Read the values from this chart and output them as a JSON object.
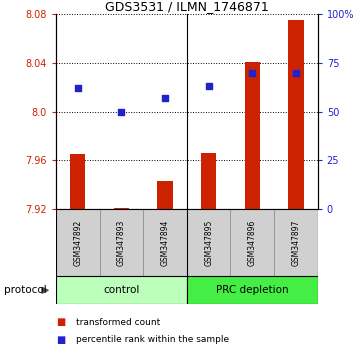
{
  "title": "GDS3531 / ILMN_1746871",
  "samples": [
    "GSM347892",
    "GSM347893",
    "GSM347894",
    "GSM347895",
    "GSM347896",
    "GSM347897"
  ],
  "transformed_count": [
    7.965,
    7.921,
    7.943,
    7.966,
    8.041,
    8.075
  ],
  "percentile_rank": [
    62,
    50,
    57,
    63,
    70,
    70
  ],
  "bar_baseline": 7.92,
  "ylim_left": [
    7.92,
    8.08
  ],
  "ylim_right": [
    0,
    100
  ],
  "yticks_left": [
    7.92,
    7.96,
    8.0,
    8.04,
    8.08
  ],
  "yticks_right": [
    0,
    25,
    50,
    75,
    100
  ],
  "bar_color": "#cc2200",
  "dot_color": "#2222cc",
  "control_color": "#bbffbb",
  "prc_color": "#44ee44",
  "protocol_groups": [
    {
      "label": "control",
      "indices": [
        0,
        1,
        2
      ],
      "color": "#bbffbb"
    },
    {
      "label": "PRC depletion",
      "indices": [
        3,
        4,
        5
      ],
      "color": "#44ee44"
    }
  ],
  "protocol_label": "protocol",
  "legend_items": [
    {
      "label": "transformed count",
      "color": "#cc2200"
    },
    {
      "label": "percentile rank within the sample",
      "color": "#2222cc"
    }
  ],
  "bar_width": 0.35
}
